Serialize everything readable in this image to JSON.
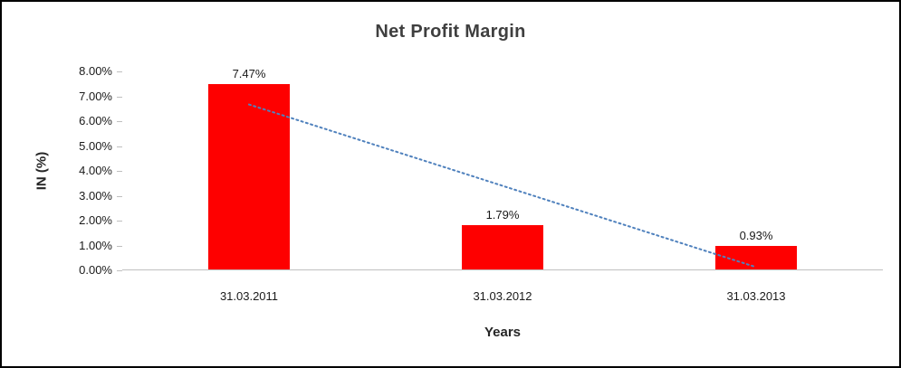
{
  "chart_data": {
    "type": "bar",
    "title": "Net Profit Margin",
    "xlabel": "Years",
    "ylabel": "IN (%)",
    "categories": [
      "31.03.2011",
      "31.03.2012",
      "31.03.2013"
    ],
    "series": [
      {
        "name": "Net Profit Margin",
        "values": [
          7.47,
          1.79,
          0.93
        ]
      }
    ],
    "data_labels": [
      "7.47%",
      "1.79%",
      "0.93%"
    ],
    "ylim": [
      0,
      8
    ],
    "ytick_labels": [
      "0.00%",
      "1.00%",
      "2.00%",
      "3.00%",
      "4.00%",
      "5.00%",
      "6.00%",
      "7.00%",
      "8.00%"
    ],
    "grid": false,
    "legend": false,
    "bar_color": "#fe0000",
    "axis_color": "#bfbfbf",
    "trendline": {
      "style": "dotted",
      "color": "#4f81bd",
      "start_value": 6.67,
      "end_value": 0.13
    }
  }
}
